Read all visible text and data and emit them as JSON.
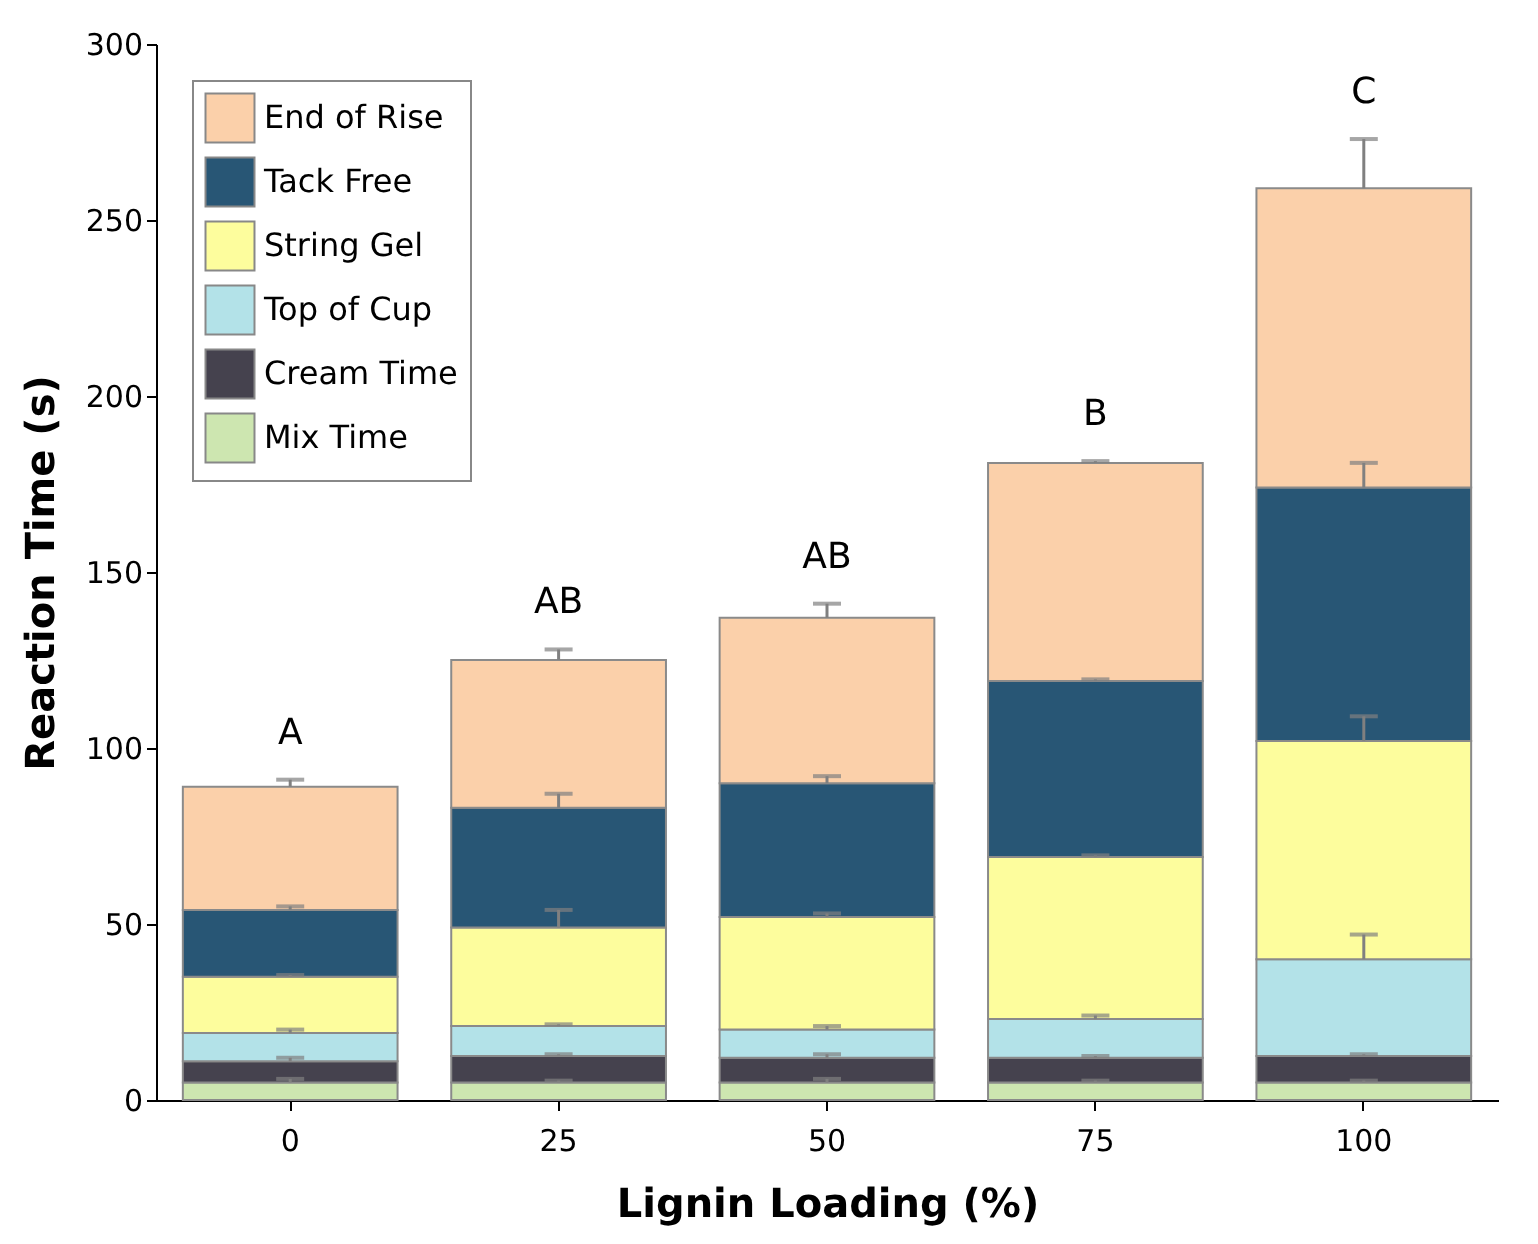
{
  "chart_data": {
    "type": "bar",
    "stacked": true,
    "xlabel": "Lignin Loading (%)",
    "ylabel": "Reaction Time (s)",
    "categories": [
      "0",
      "25",
      "50",
      "75",
      "100"
    ],
    "series": [
      {
        "name": "Mix Time",
        "color": "#cde6b0",
        "values": [
          5,
          5,
          5,
          5,
          5
        ],
        "errors": [
          [
            5,
            6
          ],
          [
            5,
            5.5
          ],
          [
            5,
            6
          ],
          [
            5,
            5.5
          ],
          [
            5,
            5.5
          ]
        ]
      },
      {
        "name": "Cream Time",
        "color": "#45424e",
        "values": [
          6,
          7.5,
          7,
          7,
          7.5
        ],
        "errors": [
          [
            11,
            12
          ],
          [
            12.5,
            13
          ],
          [
            12,
            13
          ],
          [
            12,
            12.5
          ],
          [
            12.5,
            13
          ]
        ]
      },
      {
        "name": "Top of Cup",
        "color": "#b3e2e8",
        "values": [
          8,
          8.5,
          8,
          11,
          27.5
        ],
        "errors": [
          [
            19,
            20
          ],
          [
            21,
            21.5
          ],
          [
            20,
            21
          ],
          [
            23,
            24
          ],
          [
            40,
            47
          ]
        ]
      },
      {
        "name": "String Gel",
        "color": "#fdfd9d",
        "values": [
          16,
          28,
          32,
          46,
          62
        ],
        "errors": [
          [
            35,
            35.5
          ],
          [
            49,
            54
          ],
          [
            52,
            53
          ],
          [
            69,
            69.5
          ],
          [
            102,
            109
          ]
        ]
      },
      {
        "name": "Tack Free",
        "color": "#285675",
        "values": [
          19,
          34,
          38,
          50,
          72
        ],
        "errors": [
          [
            54,
            55
          ],
          [
            83,
            87
          ],
          [
            90,
            92
          ],
          [
            119,
            119.5
          ],
          [
            174,
            181
          ]
        ]
      },
      {
        "name": "End of Rise",
        "color": "#fbd0aa",
        "values": [
          35,
          42,
          47,
          62,
          85
        ],
        "errors": [
          [
            89,
            91
          ],
          [
            125,
            128
          ],
          [
            137,
            141
          ],
          [
            181,
            181.5
          ],
          [
            259,
            273
          ]
        ]
      }
    ],
    "annotations": [
      {
        "text": "A",
        "x": "0",
        "y": 91
      },
      {
        "text": "AB",
        "x": "25",
        "y": 128
      },
      {
        "text": "AB",
        "x": "50",
        "y": 141
      },
      {
        "text": "B",
        "x": "75",
        "y": 181.5
      },
      {
        "text": "C",
        "x": "100",
        "y": 273
      }
    ],
    "ylim": [
      0,
      300
    ],
    "yticks": [
      0,
      50,
      100,
      150,
      200,
      250,
      300
    ],
    "grid": false,
    "legend": "top left"
  }
}
